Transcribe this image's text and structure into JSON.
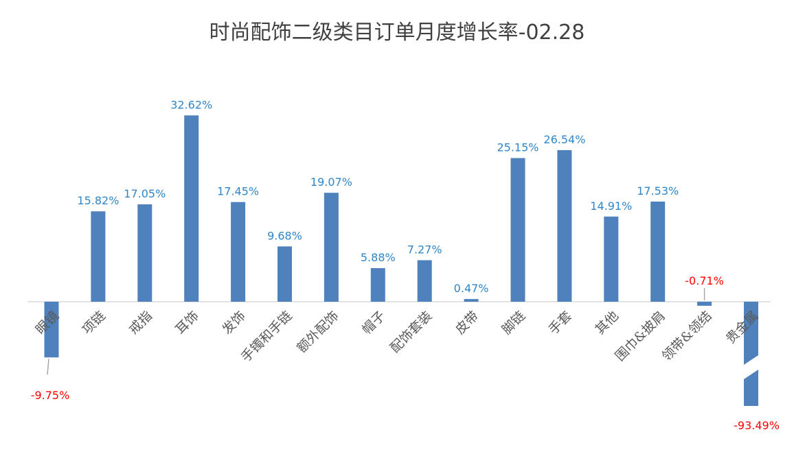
{
  "chart_data": {
    "type": "bar",
    "title": "时尚配饰二级类目订单月度增长率-02.28",
    "xlabel": "",
    "ylabel": "",
    "categories": [
      "眼镜",
      "项链",
      "戒指",
      "耳饰",
      "发饰",
      "手镯和手链",
      "额外配饰",
      "帽子",
      "配饰套装",
      "皮带",
      "脚链",
      "手套",
      "其他",
      "围巾&披肩",
      "领带&领结",
      "贵金属"
    ],
    "values": [
      -9.75,
      15.82,
      17.05,
      32.62,
      17.45,
      9.68,
      19.07,
      5.88,
      7.27,
      0.47,
      25.15,
      26.54,
      14.91,
      17.53,
      -0.71,
      -93.49
    ],
    "data_labels": [
      "-9.75%",
      "15.82%",
      "17.05%",
      "32.62%",
      "17.45%",
      "9.68%",
      "19.07%",
      "5.88%",
      "7.27%",
      "0.47%",
      "25.15%",
      "26.54%",
      "14.91%",
      "17.53%",
      "-0.71%",
      "-93.49%"
    ],
    "axis_break": {
      "category": "贵金属",
      "note": "broken bar"
    },
    "grid": false,
    "legend": "none",
    "colors": {
      "bar": "#4f81bd",
      "positive_label": "#2e86c8",
      "negative_label": "#ff0000",
      "axis": "#d9d9d9",
      "category_label": "#595959",
      "title": "#404040"
    }
  }
}
